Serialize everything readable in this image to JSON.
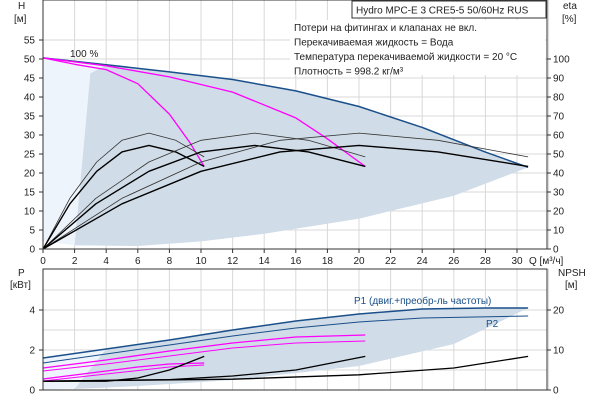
{
  "chart_data": [
    {
      "type": "line",
      "title": "Hydro MPC-E 3 CRE5-5 50/60Hz RUS",
      "xlabel": "Q [м³/ч]",
      "ylabel_left": [
        "H",
        "[м]"
      ],
      "ylabel_right": [
        "eta",
        "[%]"
      ],
      "xlim": [
        0,
        32
      ],
      "ylim_left": [
        0,
        58
      ],
      "ylim_right": [
        0,
        116
      ],
      "grid": true,
      "x_ticks": [
        "0",
        "2",
        "4",
        "6",
        "8",
        "10",
        "12",
        "14",
        "16",
        "18",
        "20",
        "22",
        "24",
        "26",
        "28",
        "30"
      ],
      "y_ticks_left": [
        "0",
        "5",
        "10",
        "15",
        "20",
        "25",
        "30",
        "35",
        "40",
        "45",
        "50",
        "55"
      ],
      "y_ticks_right": [
        "0",
        "10",
        "20",
        "30",
        "40",
        "50",
        "60",
        "70",
        "80",
        "90",
        "100"
      ],
      "annotations": {
        "speed_label": "100 %",
        "notes": [
          "Потери на фитингах и клапанах не вкл.",
          "Перекачиваемая жидкость = Вода",
          "Температура перекачиваемой жидкости = 20 °C",
          "Плотность = 998.2 кг/м³"
        ]
      },
      "series": [
        {
          "name": "H 3 pumps 100%",
          "axis": "H",
          "color": "#1a4f8a",
          "width": 1.5,
          "points": [
            [
              0,
              50.3
            ],
            [
              4,
              48.5
            ],
            [
              8,
              46.6
            ],
            [
              12,
              44.6
            ],
            [
              16,
              41.6
            ],
            [
              20,
              37.5
            ],
            [
              24,
              32
            ],
            [
              28,
              25.5
            ],
            [
              30.7,
              21.5
            ]
          ]
        },
        {
          "name": "H 1 pump",
          "axis": "H",
          "color": "#ff00ff",
          "width": 1.3,
          "points": [
            [
              0,
              50.3
            ],
            [
              2,
              48.6
            ],
            [
              4,
              47.2
            ],
            [
              6,
              43.5
            ],
            [
              8,
              35.5
            ],
            [
              9.3,
              28
            ],
            [
              10.2,
              21.7
            ]
          ]
        },
        {
          "name": "H 2 pumps",
          "axis": "H",
          "color": "#ff00ff",
          "width": 1.3,
          "points": [
            [
              0,
              50.3
            ],
            [
              4,
              48.2
            ],
            [
              8,
              45.3
            ],
            [
              12,
              41.3
            ],
            [
              16,
              34.5
            ],
            [
              18,
              29
            ],
            [
              20.4,
              21.7
            ]
          ]
        },
        {
          "name": "eta 1 pump",
          "axis": "eta",
          "color": "#333333",
          "width": 0.8,
          "points": [
            [
              0,
              0
            ],
            [
              1.7,
              26.7
            ],
            [
              3.4,
              45.8
            ],
            [
              5,
              57.2
            ],
            [
              6.7,
              61
            ],
            [
              8.4,
              57.2
            ],
            [
              10.2,
              48.5
            ]
          ]
        },
        {
          "name": "eta 1 pump total",
          "axis": "eta",
          "color": "#000000",
          "width": 1.4,
          "points": [
            [
              0,
              0
            ],
            [
              1.7,
              23.8
            ],
            [
              3.4,
              40.9
            ],
            [
              5,
              51.1
            ],
            [
              6.7,
              54.5
            ],
            [
              8.4,
              51.1
            ],
            [
              10.2,
              43.5
            ]
          ]
        },
        {
          "name": "eta 2 pumps",
          "axis": "eta",
          "color": "#333333",
          "width": 0.8,
          "points": [
            [
              0,
              0
            ],
            [
              3.35,
              26.7
            ],
            [
              6.7,
              45.8
            ],
            [
              10,
              57.2
            ],
            [
              13.4,
              61
            ],
            [
              16.8,
              57.2
            ],
            [
              20.4,
              48.5
            ]
          ]
        },
        {
          "name": "eta 2 pumps total",
          "axis": "eta",
          "color": "#000000",
          "width": 1.4,
          "points": [
            [
              0,
              0
            ],
            [
              3.35,
              23.8
            ],
            [
              6.7,
              40.9
            ],
            [
              10,
              51.1
            ],
            [
              13.4,
              54.5
            ],
            [
              16.8,
              51.1
            ],
            [
              20.4,
              43.5
            ]
          ]
        },
        {
          "name": "eta 3 pumps",
          "axis": "eta",
          "color": "#333333",
          "width": 0.8,
          "points": [
            [
              0,
              0
            ],
            [
              5,
              26.7
            ],
            [
              10,
              45.8
            ],
            [
              15,
              57.2
            ],
            [
              20,
              61
            ],
            [
              25,
              57.2
            ],
            [
              30.7,
              48.5
            ]
          ]
        },
        {
          "name": "eta 3 pumps total",
          "axis": "eta",
          "color": "#000000",
          "width": 1.4,
          "points": [
            [
              0,
              0
            ],
            [
              5,
              23.8
            ],
            [
              10,
              40.9
            ],
            [
              15,
              51.1
            ],
            [
              20,
              54.5
            ],
            [
              25,
              51.1
            ],
            [
              30.7,
              43.5
            ]
          ]
        }
      ],
      "operating_area_lower": [
        [
          0,
          2
        ],
        [
          2,
          1
        ],
        [
          6,
          0.8
        ],
        [
          10,
          2
        ],
        [
          14,
          4
        ],
        [
          20,
          8
        ],
        [
          26,
          14
        ],
        [
          30.7,
          21.5
        ]
      ]
    },
    {
      "type": "line",
      "xlim": [
        0,
        32
      ],
      "ylim_left": [
        0,
        5.9
      ],
      "ylabel_left": [
        "P",
        "[кВт]"
      ],
      "ylabel_right": [
        "NPSH",
        "[м]"
      ],
      "grid": true,
      "y_ticks_left": [
        "0",
        "2",
        "4"
      ],
      "y_ticks_right": [
        "0",
        "10",
        "20"
      ],
      "labels": {
        "p1": "P1 (двиг.+преобр-ль частоты)",
        "p2": "P2"
      },
      "series": [
        {
          "name": "P1 3 pumps",
          "axis": "P",
          "color": "#1a4f8a",
          "width": 1.5,
          "points": [
            [
              0,
              1.6
            ],
            [
              4,
              2.05
            ],
            [
              8,
              2.5
            ],
            [
              12,
              3.0
            ],
            [
              16,
              3.45
            ],
            [
              20,
              3.8
            ],
            [
              24,
              4.05
            ],
            [
              28,
              4.1
            ],
            [
              30.7,
              4.1
            ]
          ]
        },
        {
          "name": "P2 3 pumps",
          "axis": "P",
          "color": "#1a4f8a",
          "width": 1,
          "points": [
            [
              0,
              1.35
            ],
            [
              4,
              1.8
            ],
            [
              8,
              2.25
            ],
            [
              12,
              2.7
            ],
            [
              16,
              3.1
            ],
            [
              20,
              3.4
            ],
            [
              24,
              3.6
            ],
            [
              30.7,
              3.7
            ]
          ]
        },
        {
          "name": "P1 2 pumps",
          "axis": "P",
          "color": "#ff00ff",
          "width": 1.3,
          "points": [
            [
              0,
              1.1
            ],
            [
              4,
              1.5
            ],
            [
              8,
              1.95
            ],
            [
              12,
              2.35
            ],
            [
              16,
              2.65
            ],
            [
              20.4,
              2.75
            ]
          ]
        },
        {
          "name": "P2 2 pumps",
          "axis": "P",
          "color": "#ff00ff",
          "width": 1,
          "points": [
            [
              0,
              0.95
            ],
            [
              4,
              1.3
            ],
            [
              8,
              1.7
            ],
            [
              12,
              2.1
            ],
            [
              16,
              2.35
            ],
            [
              20.4,
              2.45
            ]
          ]
        },
        {
          "name": "P1 1 pump",
          "axis": "P",
          "color": "#ff00ff",
          "width": 1.3,
          "points": [
            [
              0,
              0.55
            ],
            [
              2,
              0.75
            ],
            [
              4,
              0.95
            ],
            [
              6,
              1.15
            ],
            [
              8,
              1.3
            ],
            [
              10.2,
              1.35
            ]
          ]
        },
        {
          "name": "P2 1 pump",
          "axis": "P",
          "color": "#ff00ff",
          "width": 1,
          "points": [
            [
              0,
              0.45
            ],
            [
              4,
              0.8
            ],
            [
              8,
              1.15
            ],
            [
              10.2,
              1.25
            ]
          ]
        },
        {
          "name": "NPSH 1 pump",
          "axis": "NPSH",
          "color": "#000000",
          "width": 1.3,
          "points": [
            [
              0,
              2.2
            ],
            [
              4,
              2.2
            ],
            [
              6,
              3
            ],
            [
              8,
              5
            ],
            [
              10.2,
              8.4
            ]
          ]
        },
        {
          "name": "NPSH 2 pumps",
          "axis": "NPSH",
          "color": "#000000",
          "width": 1.3,
          "points": [
            [
              0,
              2.2
            ],
            [
              8,
              2.6
            ],
            [
              12,
              3.5
            ],
            [
              16,
              5
            ],
            [
              20.4,
              8.4
            ]
          ]
        },
        {
          "name": "NPSH 3 pumps",
          "axis": "NPSH",
          "color": "#000000",
          "width": 1.3,
          "points": [
            [
              0,
              2.2
            ],
            [
              12,
              2.7
            ],
            [
              20,
              3.8
            ],
            [
              26,
              5.5
            ],
            [
              30.7,
              8.4
            ]
          ]
        }
      ],
      "operating_area_lower": [
        [
          0,
          0
        ],
        [
          6,
          0.2
        ],
        [
          12,
          0.5
        ],
        [
          20,
          1.2
        ],
        [
          26,
          2.3
        ],
        [
          30.7,
          4.1
        ]
      ]
    }
  ]
}
